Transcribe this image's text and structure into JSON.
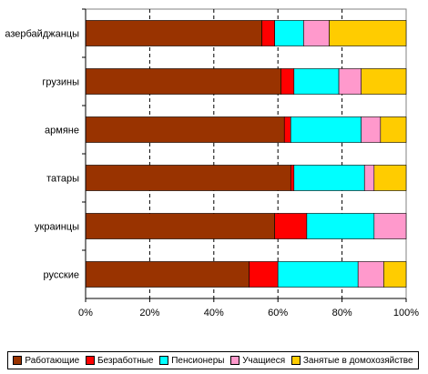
{
  "chart_data": {
    "type": "bar",
    "orientation": "horizontal",
    "stacked": "percent",
    "categories": [
      "азербайджанцы",
      "грузины",
      "армяне",
      "татары",
      "украинцы",
      "русские"
    ],
    "series": [
      {
        "name": "Работающие",
        "color": "#993300",
        "values": [
          55,
          61,
          62,
          64,
          59,
          51
        ]
      },
      {
        "name": "Безработные",
        "color": "#ff0000",
        "values": [
          4,
          4,
          2,
          1,
          10,
          9
        ]
      },
      {
        "name": "Пенсионеры",
        "color": "#00ffff",
        "values": [
          9,
          14,
          22,
          22,
          21,
          25
        ]
      },
      {
        "name": "Учащиеся",
        "color": "#ff99cc",
        "values": [
          8,
          7,
          6,
          3,
          10,
          8
        ]
      },
      {
        "name": "Занятые в домохозяйстве",
        "color": "#ffcc00",
        "values": [
          24,
          14,
          8,
          10,
          0,
          7
        ]
      }
    ],
    "xlim": [
      0,
      100
    ],
    "xticks": [
      "0%",
      "20%",
      "40%",
      "60%",
      "80%",
      "100%"
    ],
    "grid": "vertical dashed",
    "legend_position": "bottom"
  }
}
